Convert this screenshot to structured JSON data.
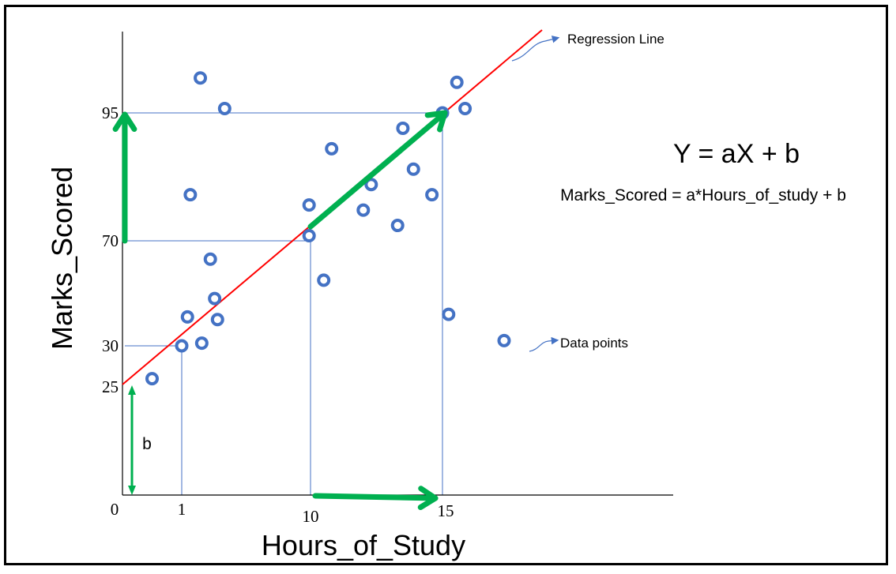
{
  "chart_data": {
    "type": "scatter",
    "title": "",
    "xlabel": "Hours_of_Study",
    "ylabel": "Marks_Scored",
    "x_tick_labels": [
      "0",
      "1",
      "10",
      "15"
    ],
    "y_tick_labels": [
      "25",
      "30",
      "70",
      "95"
    ],
    "x_ticks": [
      0,
      1,
      10,
      15
    ],
    "y_ticks": [
      25,
      30,
      70,
      95
    ],
    "regression": {
      "intercept": 25,
      "slope": 4.67,
      "color": "#ff0000"
    },
    "points": [
      {
        "x": 0.5,
        "y": 26
      },
      {
        "x": 1,
        "y": 30
      },
      {
        "x": 1.4,
        "y": 41
      },
      {
        "x": 1.6,
        "y": 79
      },
      {
        "x": 2.3,
        "y": 103
      },
      {
        "x": 2.4,
        "y": 31
      },
      {
        "x": 3.0,
        "y": 63
      },
      {
        "x": 3.3,
        "y": 48
      },
      {
        "x": 3.5,
        "y": 40
      },
      {
        "x": 4.0,
        "y": 96
      },
      {
        "x": 9.9,
        "y": 71
      },
      {
        "x": 9.9,
        "y": 77
      },
      {
        "x": 10.5,
        "y": 55
      },
      {
        "x": 10.8,
        "y": 88
      },
      {
        "x": 12.0,
        "y": 76
      },
      {
        "x": 12.3,
        "y": 81
      },
      {
        "x": 13.3,
        "y": 73
      },
      {
        "x": 13.5,
        "y": 92
      },
      {
        "x": 13.9,
        "y": 84
      },
      {
        "x": 14.6,
        "y": 79
      },
      {
        "x": 15.0,
        "y": 95
      },
      {
        "x": 15.3,
        "y": 42
      },
      {
        "x": 15.7,
        "y": 102
      },
      {
        "x": 16.1,
        "y": 96
      },
      {
        "x": 18.0,
        "y": 32
      }
    ],
    "guide_lines": [
      {
        "x": 1,
        "y": 30
      },
      {
        "x": 10,
        "y": 70
      },
      {
        "x": 15,
        "y": 95
      }
    ],
    "colors": {
      "point": "#4472c4",
      "guide": "#4472c4",
      "arrow": "#00b050",
      "line": "#ff0000"
    }
  },
  "annotations": {
    "regression_label": "Regression Line",
    "data_points_label": "Data points",
    "intercept_label": "b"
  },
  "equation": {
    "main": "Y = aX + b",
    "detail": "Marks_Scored = a*Hours_of_study + b"
  }
}
